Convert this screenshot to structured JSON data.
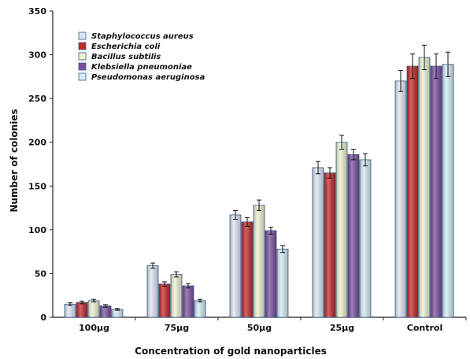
{
  "chart_data": {
    "type": "bar",
    "title": "",
    "xlabel": "Concentration of gold nanoparticles",
    "ylabel": "Number of colonies",
    "ylim": [
      0,
      350
    ],
    "yticks": [
      0,
      50,
      100,
      150,
      200,
      250,
      300,
      350
    ],
    "grid": false,
    "legend_position": "top-left",
    "categories": [
      "100µg",
      "75µg",
      "50µg",
      "25µg",
      "Control"
    ],
    "series": [
      {
        "name": "Staphylococcus aureus",
        "color": "#dbe7f6",
        "values": [
          15,
          59,
          117,
          171,
          270
        ],
        "errors": [
          1.5,
          3,
          5,
          7,
          12
        ]
      },
      {
        "name": "Escherichia coli",
        "color": "#c0292b",
        "values": [
          17,
          38,
          109,
          165,
          287
        ],
        "errors": [
          1.5,
          2.5,
          5,
          6,
          14
        ]
      },
      {
        "name": "Bacillus subtilis",
        "color": "#eef3d2",
        "values": [
          19,
          49,
          128,
          200,
          297
        ],
        "errors": [
          1.5,
          3,
          6,
          8,
          14
        ]
      },
      {
        "name": "Klebsiella pneumoniae",
        "color": "#7b4f9e",
        "values": [
          13,
          36,
          99,
          186,
          287
        ],
        "errors": [
          1.5,
          2.5,
          4,
          6,
          14
        ]
      },
      {
        "name": "Pseudomonas aeruginosa",
        "color": "#d5eef6",
        "values": [
          9,
          19,
          78,
          180,
          289
        ],
        "errors": [
          1,
          1.5,
          4,
          7,
          14
        ]
      }
    ]
  }
}
